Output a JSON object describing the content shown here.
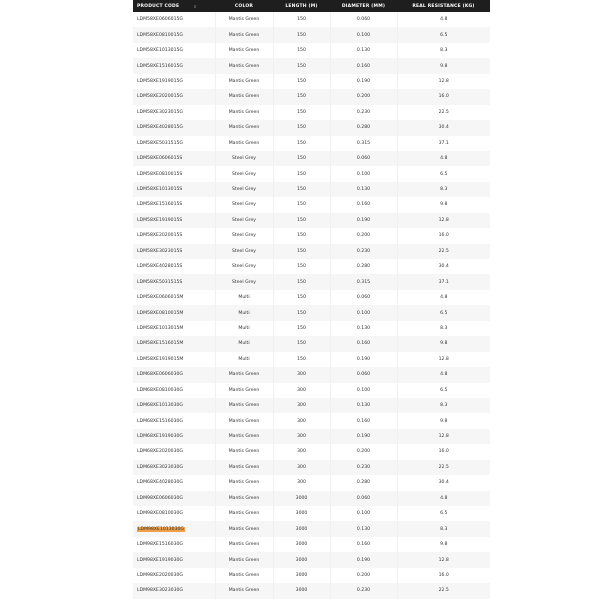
{
  "table": {
    "headers": [
      "PRODUCT CODE",
      "COLOR",
      "LENGTH (M)",
      "DIAMETER (MM)",
      "REAL RESISTANCE (KG)"
    ],
    "sort_icon": "sort-icon",
    "highlight_color": "#f0a04a",
    "rows": [
      {
        "code": "LDM58XE0606015G",
        "color": "Mantis Green",
        "length": "150",
        "diameter": "0.060",
        "resistance": "4.8"
      },
      {
        "code": "LDM58XE0810015G",
        "color": "Mantis Green",
        "length": "150",
        "diameter": "0.100",
        "resistance": "6.5"
      },
      {
        "code": "LDM58XE1013015G",
        "color": "Mantis Green",
        "length": "150",
        "diameter": "0.130",
        "resistance": "8.3"
      },
      {
        "code": "LDM58XE1516015G",
        "color": "Mantis Green",
        "length": "150",
        "diameter": "0.160",
        "resistance": "9.8"
      },
      {
        "code": "LDM58XE1919015G",
        "color": "Mantis Green",
        "length": "150",
        "diameter": "0.190",
        "resistance": "12.8"
      },
      {
        "code": "LDM58XE2020015G",
        "color": "Mantis Green",
        "length": "150",
        "diameter": "0.200",
        "resistance": "16.0"
      },
      {
        "code": "LDM58XE3023015G",
        "color": "Mantis Green",
        "length": "150",
        "diameter": "0.230",
        "resistance": "22.5"
      },
      {
        "code": "LDM58XE4028015G",
        "color": "Mantis Green",
        "length": "150",
        "diameter": "0.280",
        "resistance": "30.4"
      },
      {
        "code": "LDM58XE5031515G",
        "color": "Mantis Green",
        "length": "150",
        "diameter": "0.315",
        "resistance": "37.1"
      },
      {
        "code": "LDM58XE0606015S",
        "color": "Steel Grey",
        "length": "150",
        "diameter": "0.060",
        "resistance": "4.8"
      },
      {
        "code": "LDM58XE0810015S",
        "color": "Steel Grey",
        "length": "150",
        "diameter": "0.100",
        "resistance": "6.5"
      },
      {
        "code": "LDM58XE1013015S",
        "color": "Steel Grey",
        "length": "150",
        "diameter": "0.130",
        "resistance": "8.3"
      },
      {
        "code": "LDM58XE1516015S",
        "color": "Steel Grey",
        "length": "150",
        "diameter": "0.160",
        "resistance": "9.8"
      },
      {
        "code": "LDM58XE1919015S",
        "color": "Steel Grey",
        "length": "150",
        "diameter": "0.190",
        "resistance": "12.8"
      },
      {
        "code": "LDM58XE2020015S",
        "color": "Steel Grey",
        "length": "150",
        "diameter": "0.200",
        "resistance": "16.0"
      },
      {
        "code": "LDM58XE3023015S",
        "color": "Steel Grey",
        "length": "150",
        "diameter": "0.230",
        "resistance": "22.5"
      },
      {
        "code": "LDM58XE4028015S",
        "color": "Steel Grey",
        "length": "150",
        "diameter": "0.280",
        "resistance": "30.4"
      },
      {
        "code": "LDM58XE5031515S",
        "color": "Steel Grey",
        "length": "150",
        "diameter": "0.315",
        "resistance": "37.1"
      },
      {
        "code": "LDM58XE0606015M",
        "color": "Multi",
        "length": "150",
        "diameter": "0.060",
        "resistance": "4.8"
      },
      {
        "code": "LDM58XE0810015M",
        "color": "Multi",
        "length": "150",
        "diameter": "0.100",
        "resistance": "6.5"
      },
      {
        "code": "LDM58XE1013015M",
        "color": "Multi",
        "length": "150",
        "diameter": "0.130",
        "resistance": "8.3"
      },
      {
        "code": "LDM58XE1516015M",
        "color": "Multi",
        "length": "150",
        "diameter": "0.160",
        "resistance": "9.8"
      },
      {
        "code": "LDM58XE1919015M",
        "color": "Multi",
        "length": "150",
        "diameter": "0.190",
        "resistance": "12.8"
      },
      {
        "code": "LDM68XE0606030G",
        "color": "Mantis Green",
        "length": "300",
        "diameter": "0.060",
        "resistance": "4.8"
      },
      {
        "code": "LDM68XE0810030G",
        "color": "Mantis Green",
        "length": "300",
        "diameter": "0.100",
        "resistance": "6.5"
      },
      {
        "code": "LDM68XE1013030G",
        "color": "Mantis Green",
        "length": "300",
        "diameter": "0.130",
        "resistance": "8.3"
      },
      {
        "code": "LDM68XE1516030G",
        "color": "Mantis Green",
        "length": "300",
        "diameter": "0.160",
        "resistance": "9.8"
      },
      {
        "code": "LDM68XE1919030G",
        "color": "Mantis Green",
        "length": "300",
        "diameter": "0.190",
        "resistance": "12.8"
      },
      {
        "code": "LDM68XE2020030G",
        "color": "Mantis Green",
        "length": "300",
        "diameter": "0.200",
        "resistance": "16.0"
      },
      {
        "code": "LDM68XE3023030G",
        "color": "Mantis Green",
        "length": "300",
        "diameter": "0.230",
        "resistance": "22.5"
      },
      {
        "code": "LDM68XE4028030G",
        "color": "Mantis Green",
        "length": "300",
        "diameter": "0.280",
        "resistance": "30.4"
      },
      {
        "code": "LDM98XE0606030G",
        "color": "Mantis Green",
        "length": "3000",
        "diameter": "0.060",
        "resistance": "4.8"
      },
      {
        "code": "LDM98XE0810030G",
        "color": "Mantis Green",
        "length": "3000",
        "diameter": "0.100",
        "resistance": "6.5"
      },
      {
        "code": "LDM98XE1013030G",
        "color": "Mantis Green",
        "length": "3000",
        "diameter": "0.130",
        "resistance": "8.3",
        "highlighted": true
      },
      {
        "code": "LDM98XE1516030G",
        "color": "Mantis Green",
        "length": "3000",
        "diameter": "0.160",
        "resistance": "9.8"
      },
      {
        "code": "LDM98XE1919030G",
        "color": "Mantis Green",
        "length": "3000",
        "diameter": "0.190",
        "resistance": "12.8"
      },
      {
        "code": "LDM98XE2020030G",
        "color": "Mantis Green",
        "length": "3000",
        "diameter": "0.200",
        "resistance": "16.0"
      },
      {
        "code": "LDM98XE3023030G",
        "color": "Mantis Green",
        "length": "3000",
        "diameter": "0.230",
        "resistance": "22.5"
      }
    ]
  }
}
